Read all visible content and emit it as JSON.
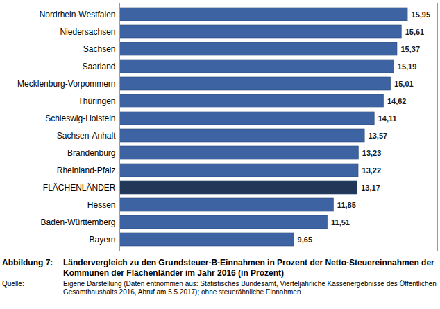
{
  "chart_data": {
    "type": "bar",
    "orientation": "horizontal",
    "figure_label": "Abbildung 7:",
    "title": "Ländervergleich zu den Grundsteuer-B-Einnahmen in Prozent der Netto-Steuereinnahmen der Kommunen der Flächenländer im Jahr 2016 (in Prozent)",
    "source_label": "Quelle:",
    "source": "Eigene Darstellung (Daten entnommen aus: Statistisches Bundesamt, Vierteljährliche Kassenergebnisse des Öffentlichen Gesamthaushalts 2016, Abruf am 5.5.2017); ohne steuerähnliche Einnahmen",
    "categories": [
      "Nordrhein-Westfalen",
      "Niedersachsen",
      "Sachsen",
      "Saarland",
      "Mecklenburg-Vorpommern",
      "Thüringen",
      "Schleswig-Holstein",
      "Sachsen-Anhalt",
      "Brandenburg",
      "Rheinland-Pfalz",
      "FLÄCHENLÄNDER",
      "Hessen",
      "Baden-Württemberg",
      "Bayern"
    ],
    "values": [
      15.95,
      15.61,
      15.37,
      15.19,
      15.01,
      14.62,
      14.11,
      13.57,
      13.23,
      13.22,
      13.17,
      11.85,
      11.51,
      9.65
    ],
    "value_labels": [
      "15,95",
      "15,61",
      "15,37",
      "15,19",
      "15,01",
      "14,62",
      "14,11",
      "13,57",
      "13,23",
      "13,22",
      "13,17",
      "11,85",
      "11,51",
      "9,65"
    ],
    "colors": [
      "#3d63a3",
      "#3d63a3",
      "#3d63a3",
      "#3d63a3",
      "#3d63a3",
      "#3d63a3",
      "#3d63a3",
      "#3d63a3",
      "#3d63a3",
      "#3d63a3",
      "#233858",
      "#3d63a3",
      "#3d63a3",
      "#3d63a3"
    ],
    "xlim": [
      0,
      17.6
    ],
    "xticks": [],
    "tick_labels": "y",
    "data_labels": true,
    "grid": false
  }
}
